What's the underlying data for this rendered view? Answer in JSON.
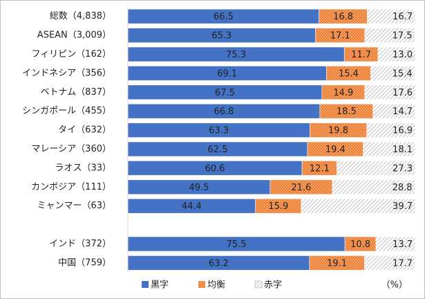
{
  "chart_data": {
    "type": "stacked-bar-horizontal",
    "categories": [
      "総数（4,838）",
      "ASEAN（3,009）",
      "フィリピン（162）",
      "インドネシア（356）",
      "ベトナム（837）",
      "シンガポール（455）",
      "タイ（632）",
      "マレーシア（360）",
      "ラオス（33）",
      "カンボジア（111）",
      "ミャンマー（63）",
      null,
      "インド（372）",
      "中国（759）"
    ],
    "xlim": [
      0,
      100
    ],
    "unit": "（%）",
    "series": [
      {
        "name": "黒字",
        "color": "#4472c4",
        "pattern": "solid",
        "values": [
          66.5,
          65.3,
          75.3,
          69.1,
          67.5,
          66.8,
          63.3,
          62.5,
          60.6,
          49.5,
          44.4,
          null,
          75.5,
          63.2
        ]
      },
      {
        "name": "均衡",
        "color": "#ed7d31",
        "pattern": "dots",
        "values": [
          16.8,
          17.1,
          11.7,
          15.4,
          14.9,
          18.5,
          19.8,
          19.4,
          12.1,
          21.6,
          15.9,
          null,
          10.8,
          19.1
        ]
      },
      {
        "name": "赤字",
        "color": "#a6a6a6",
        "pattern": "hatch",
        "values": [
          16.7,
          17.5,
          13.0,
          15.4,
          17.6,
          14.7,
          16.9,
          18.1,
          27.3,
          28.8,
          39.7,
          null,
          13.7,
          17.7
        ],
        "value_labels": [
          "16.7",
          "17.5",
          "13.0",
          "15.4",
          "17.6",
          "14.7",
          "16.9",
          "18.1",
          "27.3",
          "28.8",
          "39.7",
          null,
          "13.7",
          "17.7"
        ]
      }
    ]
  }
}
